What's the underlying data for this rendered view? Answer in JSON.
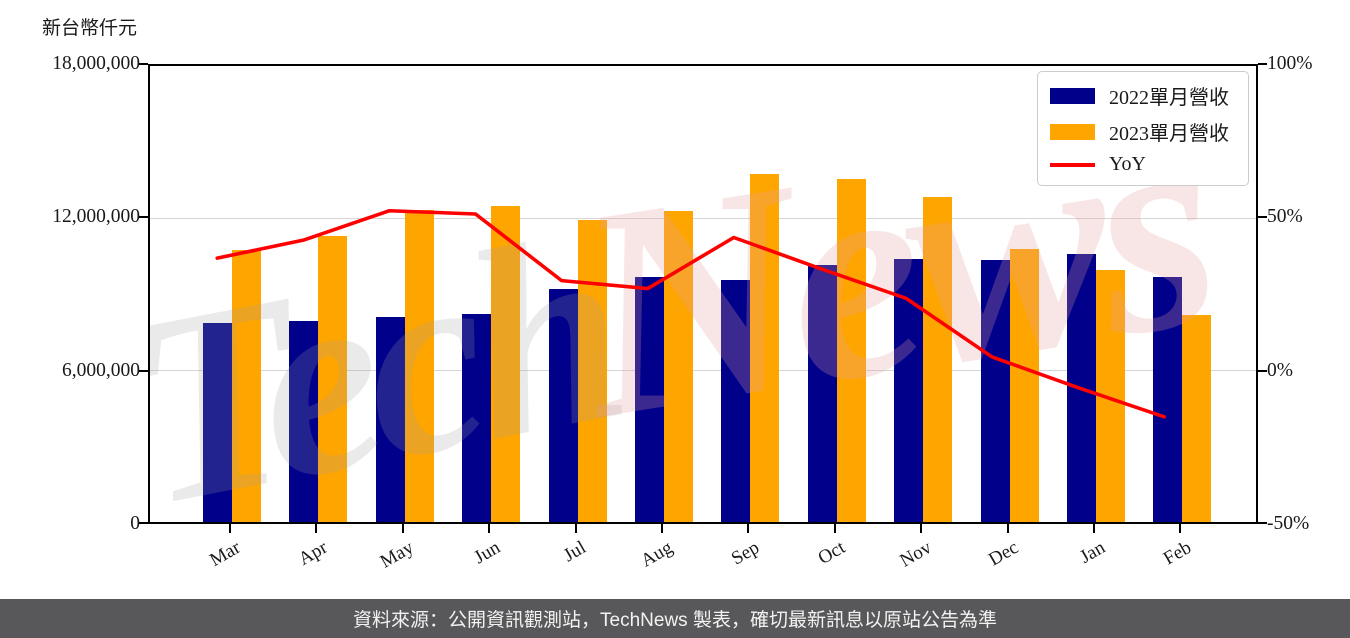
{
  "unit_label": "新台幣仟元",
  "watermark": {
    "part1": "Tech",
    "part2": "News"
  },
  "legend": {
    "items": [
      {
        "label": "2022單月營收",
        "swatch": "rect",
        "color": "#00008B"
      },
      {
        "label": "2023單月營收",
        "swatch": "rect",
        "color": "#FFA500"
      },
      {
        "label": "YoY",
        "swatch": "line",
        "color": "#FF0000"
      }
    ]
  },
  "footer": {
    "text": "資料來源：公開資訊觀測站，TechNews 製表，確切最新訊息以原站公告為準"
  },
  "chart_data": {
    "type": "bar",
    "title": "",
    "categories": [
      "Mar",
      "Apr",
      "May",
      "Jun",
      "Jul",
      "Aug",
      "Sep",
      "Oct",
      "Nov",
      "Dec",
      "Jan",
      "Feb"
    ],
    "series": [
      {
        "name": "2022單月營收",
        "type": "bar",
        "axis": "left",
        "color": "#00008B",
        "values": [
          7790000,
          7850000,
          8020000,
          8160000,
          9120000,
          9600000,
          9460000,
          10070000,
          10280000,
          10250000,
          10470000,
          9590000
        ]
      },
      {
        "name": "2023單月營收",
        "type": "bar",
        "axis": "left",
        "color": "#FFA500",
        "values": [
          10650000,
          11200000,
          12220000,
          12350000,
          11800000,
          12170000,
          13600000,
          13430000,
          12710000,
          10690000,
          9860000,
          8110000
        ]
      },
      {
        "name": "YoY",
        "type": "line",
        "axis": "right",
        "color": "#FF0000",
        "unit": "%",
        "values": [
          36.8,
          42.7,
          52.4,
          51.3,
          29.4,
          26.8,
          43.6,
          33.4,
          23.6,
          4.3,
          -5.8,
          -15.4
        ]
      }
    ],
    "left_axis": {
      "title": "新台幣仟元",
      "min": 0,
      "max": 18000000,
      "tick_labels": [
        "18,000,000",
        "12,000,000",
        "6,000,000",
        "0"
      ]
    },
    "right_axis": {
      "min": -50,
      "max": 100,
      "tick_labels": [
        "100%",
        "50%",
        "0%",
        "-50%"
      ]
    },
    "grid": true,
    "legend_position": "upper right"
  }
}
